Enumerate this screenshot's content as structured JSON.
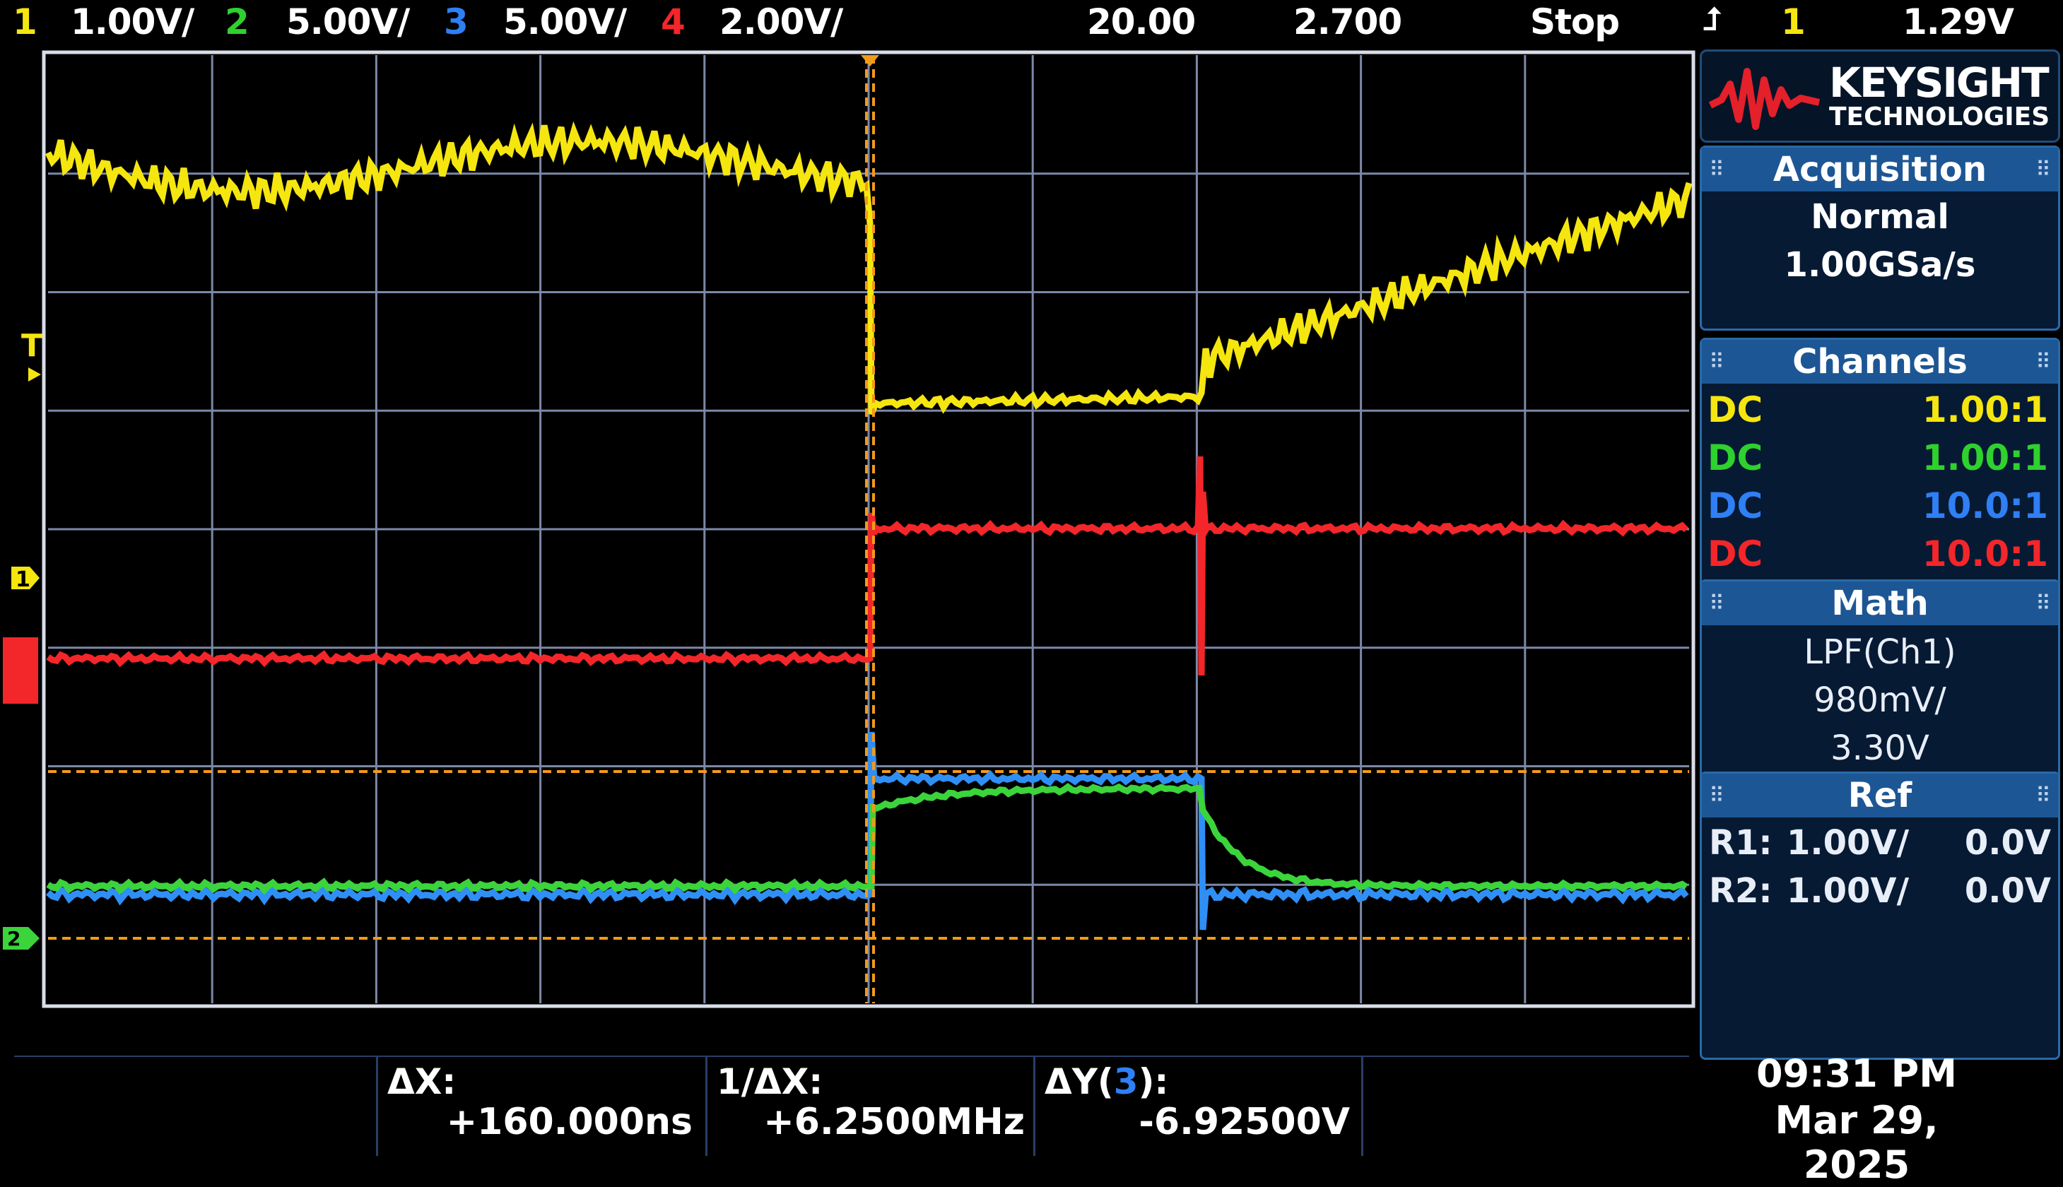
{
  "topbar": {
    "ch1_num": "1",
    "ch1_scale": "1.00V/",
    "ch2_num": "2",
    "ch2_scale": "5.00V/",
    "ch3_num": "3",
    "ch3_scale": "5.00V/",
    "ch4_num": "4",
    "ch4_scale": "2.00V/",
    "time_delay": "20.00",
    "time_scale": "2.700",
    "run_state": "Stop",
    "trigger_icon": "trigger-edge-icon",
    "trigger_source": "1",
    "trigger_level": "1.29V"
  },
  "panel": {
    "logo": {
      "brand": "KEYSIGHT",
      "sub": "TECHNOLOGIES"
    },
    "acquisition": {
      "header": "Acquisition",
      "mode": "Normal",
      "rate": "1.00GSa/s"
    },
    "channels": {
      "header": "Channels",
      "rows": [
        {
          "coupling": "DC",
          "probe": "1.00:1"
        },
        {
          "coupling": "DC",
          "probe": "1.00:1"
        },
        {
          "coupling": "DC",
          "probe": "10.0:1"
        },
        {
          "coupling": "DC",
          "probe": "10.0:1"
        }
      ]
    },
    "math": {
      "header": "Math",
      "function": "LPF(Ch1)",
      "scale": "980mV/",
      "offset": "3.30V"
    },
    "ref": {
      "header": "Ref",
      "rows": [
        {
          "name": "R1:",
          "scale": "1.00V/",
          "offset": "0.0V"
        },
        {
          "name": "R2:",
          "scale": "1.00V/",
          "offset": "0.0V"
        }
      ]
    }
  },
  "markers": {
    "trigger_level_marker": "T",
    "ch1_marker": "1",
    "ch2_marker": "2"
  },
  "bottom": {
    "dx_label": "ΔX:",
    "dx_value": "+160.000ns",
    "inv_dx_label": "1/ΔX:",
    "inv_dx_value": "+6.2500MHz",
    "dy_label_prefix": "ΔY(",
    "dy_channel": "3",
    "dy_label_suffix": "):",
    "dy_value": "-6.92500V",
    "time": "09:31 PM",
    "date": "Mar 29, 2025"
  },
  "colors": {
    "ch1": "#f5e60f",
    "ch2": "#2ed12e",
    "ch3": "#2f7ff5",
    "ch4": "#f3262a",
    "cursor": "#f29a1a",
    "grid": "#8c97b5",
    "panel_header": "#1d5694"
  }
}
